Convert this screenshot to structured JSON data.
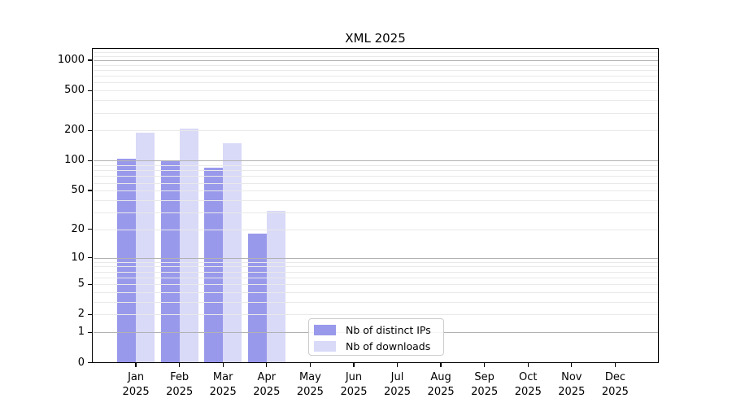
{
  "title": "XML 2025",
  "chart_data": {
    "type": "bar",
    "title": "XML 2025",
    "categories": [
      "Jan 2025",
      "Feb 2025",
      "Mar 2025",
      "Apr 2025",
      "May 2025",
      "Jun 2025",
      "Jul 2025",
      "Aug 2025",
      "Sep 2025",
      "Oct 2025",
      "Nov 2025",
      "Dec 2025"
    ],
    "series": [
      {
        "name": "Nb of distinct IPs",
        "color": "#9999ec",
        "values": [
          105,
          100,
          85,
          18,
          null,
          null,
          null,
          null,
          null,
          null,
          null,
          null
        ]
      },
      {
        "name": "Nb of downloads",
        "color": "#d9d9f8",
        "values": [
          190,
          210,
          150,
          31,
          null,
          null,
          null,
          null,
          null,
          null,
          null,
          null
        ]
      }
    ],
    "xlabel": "",
    "ylabel": "",
    "y_scale": "log(1+x)",
    "y_ticks": [
      0,
      1,
      2,
      5,
      10,
      20,
      50,
      100,
      200,
      500,
      1000
    ],
    "ylim": [
      0,
      1310
    ],
    "grid": true,
    "legend_position": "lower center",
    "legend_entries": [
      "Nb of distinct IPs",
      "Nb of downloads"
    ]
  },
  "colors": {
    "background": "#ffffff",
    "bar_distinct_ips": "#9999ec",
    "bar_downloads": "#d9d9f8",
    "grid_major": "#b2b2b2",
    "grid_minor": "#e9e9e9",
    "spine": "#000000",
    "text": "#000000",
    "legend_border": "#cccccc"
  }
}
